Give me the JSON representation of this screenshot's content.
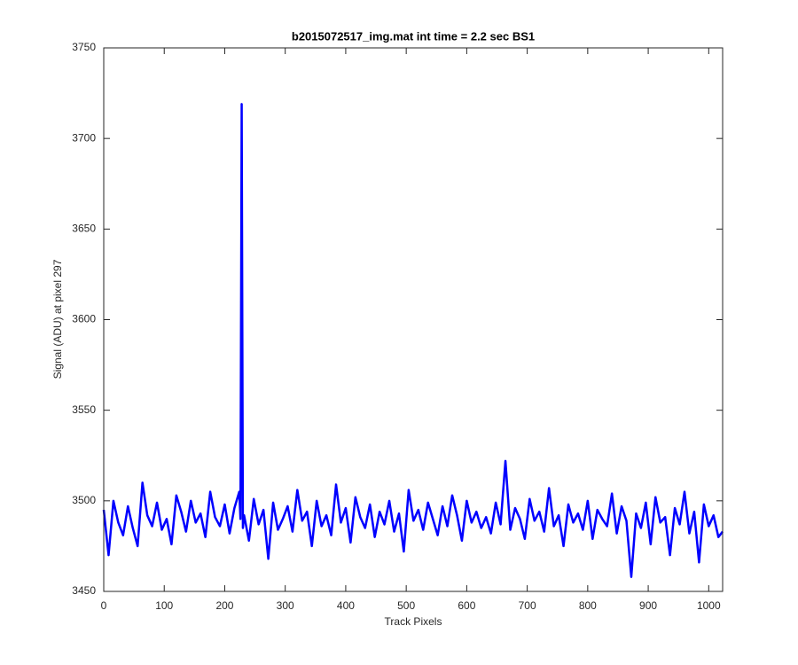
{
  "chart_data": {
    "type": "line",
    "title": "b2015072517_img.mat int time = 2.2 sec   BS1",
    "xlabel": "Track Pixels",
    "ylabel": "Signal (ADU) at pixel 297",
    "xlim": [
      0,
      1023
    ],
    "xticks": [
      0,
      100,
      200,
      300,
      400,
      500,
      600,
      700,
      800,
      900,
      1000
    ],
    "ylim": [
      3450,
      3750
    ],
    "yticks": [
      3450,
      3500,
      3550,
      3600,
      3650,
      3700,
      3750
    ],
    "series": [
      {
        "color": "#0000ff",
        "x": [
          0,
          8,
          16,
          24,
          32,
          40,
          48,
          56,
          64,
          72,
          80,
          88,
          96,
          104,
          112,
          120,
          128,
          136,
          144,
          152,
          160,
          168,
          176,
          184,
          192,
          200,
          208,
          216,
          224,
          226,
          228,
          230,
          232,
          240,
          248,
          256,
          264,
          272,
          280,
          288,
          296,
          304,
          312,
          320,
          328,
          336,
          344,
          352,
          360,
          368,
          376,
          384,
          392,
          400,
          408,
          416,
          424,
          432,
          440,
          448,
          456,
          464,
          472,
          480,
          488,
          496,
          504,
          512,
          520,
          528,
          536,
          544,
          552,
          560,
          568,
          576,
          584,
          592,
          600,
          608,
          616,
          624,
          632,
          640,
          648,
          656,
          664,
          672,
          680,
          688,
          696,
          704,
          712,
          720,
          728,
          736,
          744,
          752,
          760,
          768,
          776,
          784,
          792,
          800,
          808,
          816,
          824,
          832,
          840,
          848,
          856,
          864,
          872,
          880,
          888,
          896,
          904,
          912,
          920,
          928,
          936,
          944,
          952,
          960,
          968,
          976,
          984,
          992,
          1000,
          1008,
          1016,
          1023
        ],
        "values": [
          3495,
          3470,
          3500,
          3488,
          3481,
          3497,
          3485,
          3475,
          3510,
          3492,
          3486,
          3499,
          3484,
          3490,
          3476,
          3503,
          3494,
          3483,
          3500,
          3488,
          3493,
          3480,
          3505,
          3491,
          3486,
          3498,
          3482,
          3496,
          3505,
          3490,
          3719,
          3485,
          3492,
          3478,
          3501,
          3487,
          3495,
          3468,
          3499,
          3484,
          3490,
          3497,
          3483,
          3506,
          3489,
          3494,
          3475,
          3500,
          3486,
          3492,
          3481,
          3509,
          3488,
          3496,
          3477,
          3502,
          3491,
          3485,
          3498,
          3480,
          3494,
          3487,
          3500,
          3483,
          3493,
          3472,
          3506,
          3489,
          3495,
          3484,
          3499,
          3490,
          3481,
          3497,
          3486,
          3503,
          3492,
          3478,
          3500,
          3488,
          3494,
          3485,
          3491,
          3482,
          3499,
          3487,
          3522,
          3484,
          3496,
          3490,
          3479,
          3501,
          3489,
          3494,
          3483,
          3507,
          3486,
          3492,
          3475,
          3498,
          3488,
          3493,
          3484,
          3500,
          3479,
          3495,
          3490,
          3486,
          3504,
          3482,
          3497,
          3489,
          3458,
          3493,
          3485,
          3499,
          3476,
          3502,
          3488,
          3491,
          3470,
          3496,
          3487,
          3505,
          3482,
          3494,
          3466,
          3498,
          3486,
          3492,
          3480,
          3483
        ]
      }
    ]
  }
}
